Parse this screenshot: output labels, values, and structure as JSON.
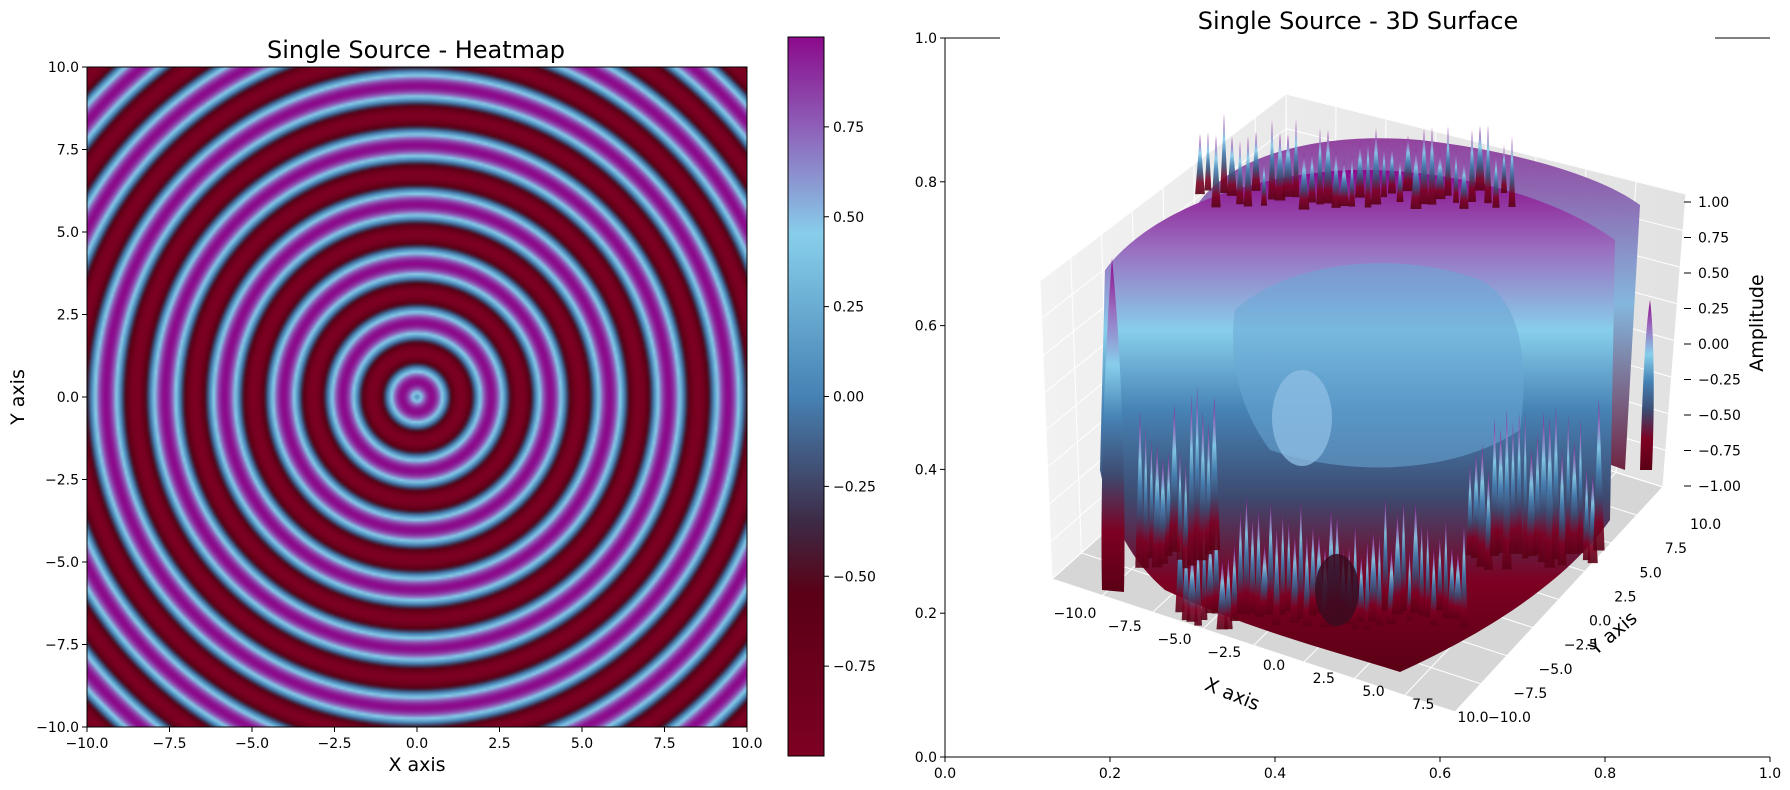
{
  "chart_data": [
    {
      "type": "heatmap",
      "title": "Single Source - Heatmap",
      "xlabel": "X axis",
      "ylabel": "Y axis",
      "xlim": [
        -10,
        10
      ],
      "ylim": [
        -10,
        10
      ],
      "x_ticks": [
        "−10.0",
        "−7.5",
        "−5.0",
        "−2.5",
        "0.0",
        "2.5",
        "5.0",
        "7.5",
        "10.0"
      ],
      "y_ticks": [
        "−10.0",
        "−7.5",
        "−5.0",
        "−2.5",
        "0.0",
        "2.5",
        "5.0",
        "7.5",
        "10.0"
      ],
      "function": "sin(k * r), r = sqrt(x^2 + y^2), source at (0, 0)",
      "wave_number_k": 3.5,
      "colorbar": {
        "range": [
          -1,
          1
        ],
        "ticks": [
          "−0.75",
          "−0.50",
          "−0.25",
          "0.00",
          "0.25",
          "0.50",
          "0.75"
        ],
        "tick_values": [
          -0.75,
          -0.5,
          -0.25,
          0.0,
          0.25,
          0.5,
          0.75
        ],
        "colormap_stops": [
          {
            "value": -1.0,
            "color": "#7d0022"
          },
          {
            "value": -0.55,
            "color": "#5a0015"
          },
          {
            "value": -0.35,
            "color": "#3d2a45"
          },
          {
            "value": 0.0,
            "color": "#4682b4"
          },
          {
            "value": 0.45,
            "color": "#87ceeb"
          },
          {
            "value": 0.75,
            "color": "#8e5fb8"
          },
          {
            "value": 1.0,
            "color": "#8b0a8b"
          }
        ]
      }
    },
    {
      "type": "surface3d",
      "title": "Single Source - 3D Surface",
      "xlabel": "X axis",
      "ylabel": "Y axis",
      "zlabel": "Amplitude",
      "x_ticks": [
        "−10.0",
        "−7.5",
        "−5.0",
        "−2.5",
        "0.0",
        "2.5",
        "5.0",
        "7.5",
        "10.0"
      ],
      "y_ticks": [
        "−10.0",
        "−7.5",
        "−5.0",
        "−2.5",
        "0.0",
        "2.5",
        "5.0",
        "7.5",
        "10.0"
      ],
      "z_ticks": [
        "−1.00",
        "−0.75",
        "−0.50",
        "−0.25",
        "0.00",
        "0.25",
        "0.50",
        "0.75",
        "1.00"
      ],
      "zlim": [
        -1,
        1
      ],
      "frame_x_ticks": [
        "0.0",
        "0.2",
        "0.4",
        "0.6",
        "0.8",
        "1.0"
      ],
      "frame_y_ticks": [
        "0.0",
        "0.2",
        "0.4",
        "0.6",
        "0.8",
        "1.0"
      ]
    }
  ]
}
